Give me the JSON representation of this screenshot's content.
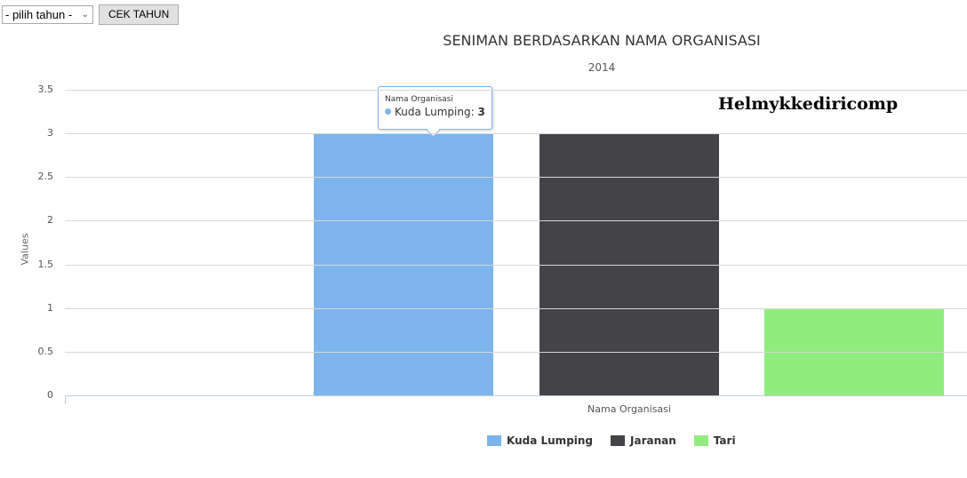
{
  "controls": {
    "year_select_value": "- pilih tahun -",
    "year_select_icon": "chevron-down-icon",
    "check_button_label": "CEK TAHUN"
  },
  "watermark": "Helmykkediricomp",
  "tooltip": {
    "header": "Nama Organisasi",
    "series": "Kuda Lumping",
    "value": "3",
    "color": "#7cb5ec"
  },
  "chart_data": {
    "type": "bar",
    "title": "SENIMAN BERDASARKAN NAMA ORGANISASI",
    "subtitle": "2014",
    "xlabel": "",
    "ylabel": "Values",
    "categories": [
      "Nama Organisasi"
    ],
    "series": [
      {
        "name": "Kuda Lumping",
        "values": [
          3
        ],
        "color": "#7cb5ec"
      },
      {
        "name": "Jaranan",
        "values": [
          3
        ],
        "color": "#434348"
      },
      {
        "name": "Tari",
        "values": [
          1
        ],
        "color": "#90ed7d"
      }
    ],
    "y_ticks": [
      "0",
      "0.5",
      "1",
      "1.5",
      "2",
      "2.5",
      "3",
      "3.5"
    ],
    "ylim": [
      0,
      3.5
    ],
    "grid": true,
    "legend_position": "bottom"
  }
}
